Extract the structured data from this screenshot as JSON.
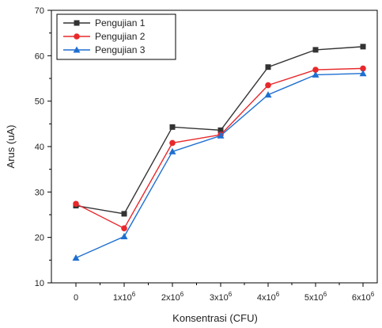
{
  "chart_data": {
    "type": "line",
    "title": "",
    "xlabel": "Konsentrasi (CFU)",
    "ylabel": "Arus (uA)",
    "categories": [
      {
        "base": "0",
        "exp": ""
      },
      {
        "base": "1x10",
        "exp": "6"
      },
      {
        "base": "2x10",
        "exp": "6"
      },
      {
        "base": "3x10",
        "exp": "6"
      },
      {
        "base": "4x10",
        "exp": "6"
      },
      {
        "base": "5x10",
        "exp": "6"
      },
      {
        "base": "6x10",
        "exp": "6"
      }
    ],
    "ylim": [
      10,
      70
    ],
    "yticks": [
      10,
      20,
      30,
      40,
      50,
      60,
      70
    ],
    "grid": false,
    "legend_position": "top-left",
    "series": [
      {
        "name": "Pengujian 1",
        "color": "#333333",
        "marker": "square",
        "values": [
          27.0,
          25.2,
          44.3,
          43.6,
          57.5,
          61.3,
          62.0
        ]
      },
      {
        "name": "Pengujian 2",
        "color": "#e8282b",
        "marker": "circle",
        "values": [
          27.4,
          22.0,
          40.8,
          42.6,
          53.5,
          56.9,
          57.2
        ]
      },
      {
        "name": "Pengujian 3",
        "color": "#1f6fd1",
        "marker": "triangle",
        "values": [
          15.5,
          20.2,
          38.9,
          42.4,
          51.4,
          55.8,
          56.1
        ]
      }
    ]
  }
}
